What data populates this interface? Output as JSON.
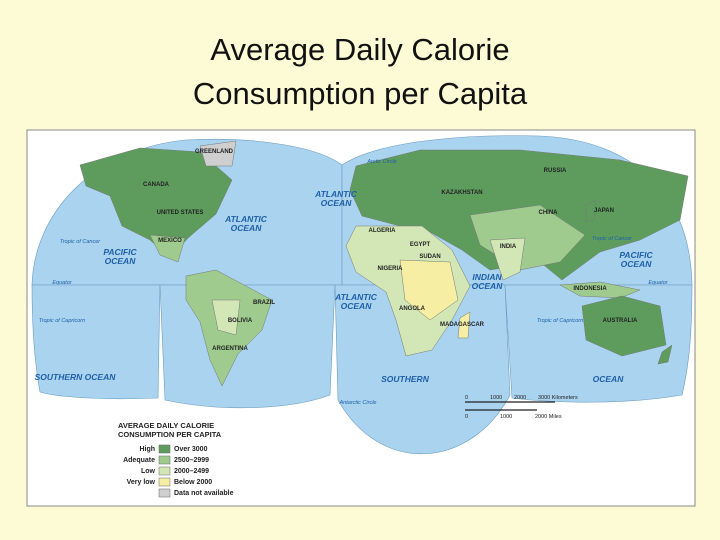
{
  "title": {
    "lines": [
      "Average Daily Calorie",
      "Consumption per Capita"
    ]
  },
  "map": {
    "oceans": [
      {
        "lines": [
          "PACIFIC",
          "OCEAN"
        ]
      },
      {
        "lines": [
          "ATLANTIC",
          "OCEAN"
        ]
      },
      {
        "lines": [
          "ATLANTIC",
          "OCEAN"
        ]
      },
      {
        "lines": [
          "ATLANTIC",
          "OCEAN"
        ]
      },
      {
        "lines": [
          "INDIAN",
          "OCEAN"
        ]
      },
      {
        "lines": [
          "PACIFIC",
          "OCEAN"
        ]
      },
      {
        "lines": [
          "SOUTHERN OCEAN"
        ]
      },
      {
        "lines": [
          "SOUTHERN"
        ]
      },
      {
        "lines": [
          "OCEAN"
        ]
      }
    ],
    "circles": [
      "Arctic Circle",
      "Tropic of Cancer",
      "Tropic of Cancer",
      "Equator",
      "Equator",
      "Tropic of Capricorn",
      "Tropic of Capricorn",
      "Antarctic Circle"
    ],
    "countries": [
      "GREENLAND",
      "CANADA",
      "UNITED STATES",
      "MEXICO",
      "BRAZIL",
      "BOLIVIA",
      "ARGENTINA",
      "RUSSIA",
      "KAZAKHSTAN",
      "CHINA",
      "INDIA",
      "EGYPT",
      "ALGERIA",
      "NIGERIA",
      "SUDAN",
      "ANGOLA",
      "AUSTRALIA",
      "INDONESIA",
      "JAPAN",
      "MADAGASCAR"
    ]
  },
  "legend": {
    "title_lines": [
      "AVERAGE DAILY CALORIE",
      "CONSUMPTION PER CAPITA"
    ],
    "items": [
      {
        "level": "High",
        "range": "Over 3000",
        "color": "#5e9c5e"
      },
      {
        "level": "Adequate",
        "range": "2500–2999",
        "color": "#9fcb8f"
      },
      {
        "level": "Low",
        "range": "2000–2499",
        "color": "#d3e7b6"
      },
      {
        "level": "Very low",
        "range": "Below 2000",
        "color": "#f5eea3"
      },
      {
        "level": null,
        "range": "Data not available",
        "color": "#cfcfcf"
      }
    ]
  },
  "scale": {
    "kilometers": [
      "0",
      "1000",
      "2000",
      "3000 Kilometers"
    ],
    "miles": [
      "0",
      "1000",
      "2000 Miles"
    ]
  }
}
